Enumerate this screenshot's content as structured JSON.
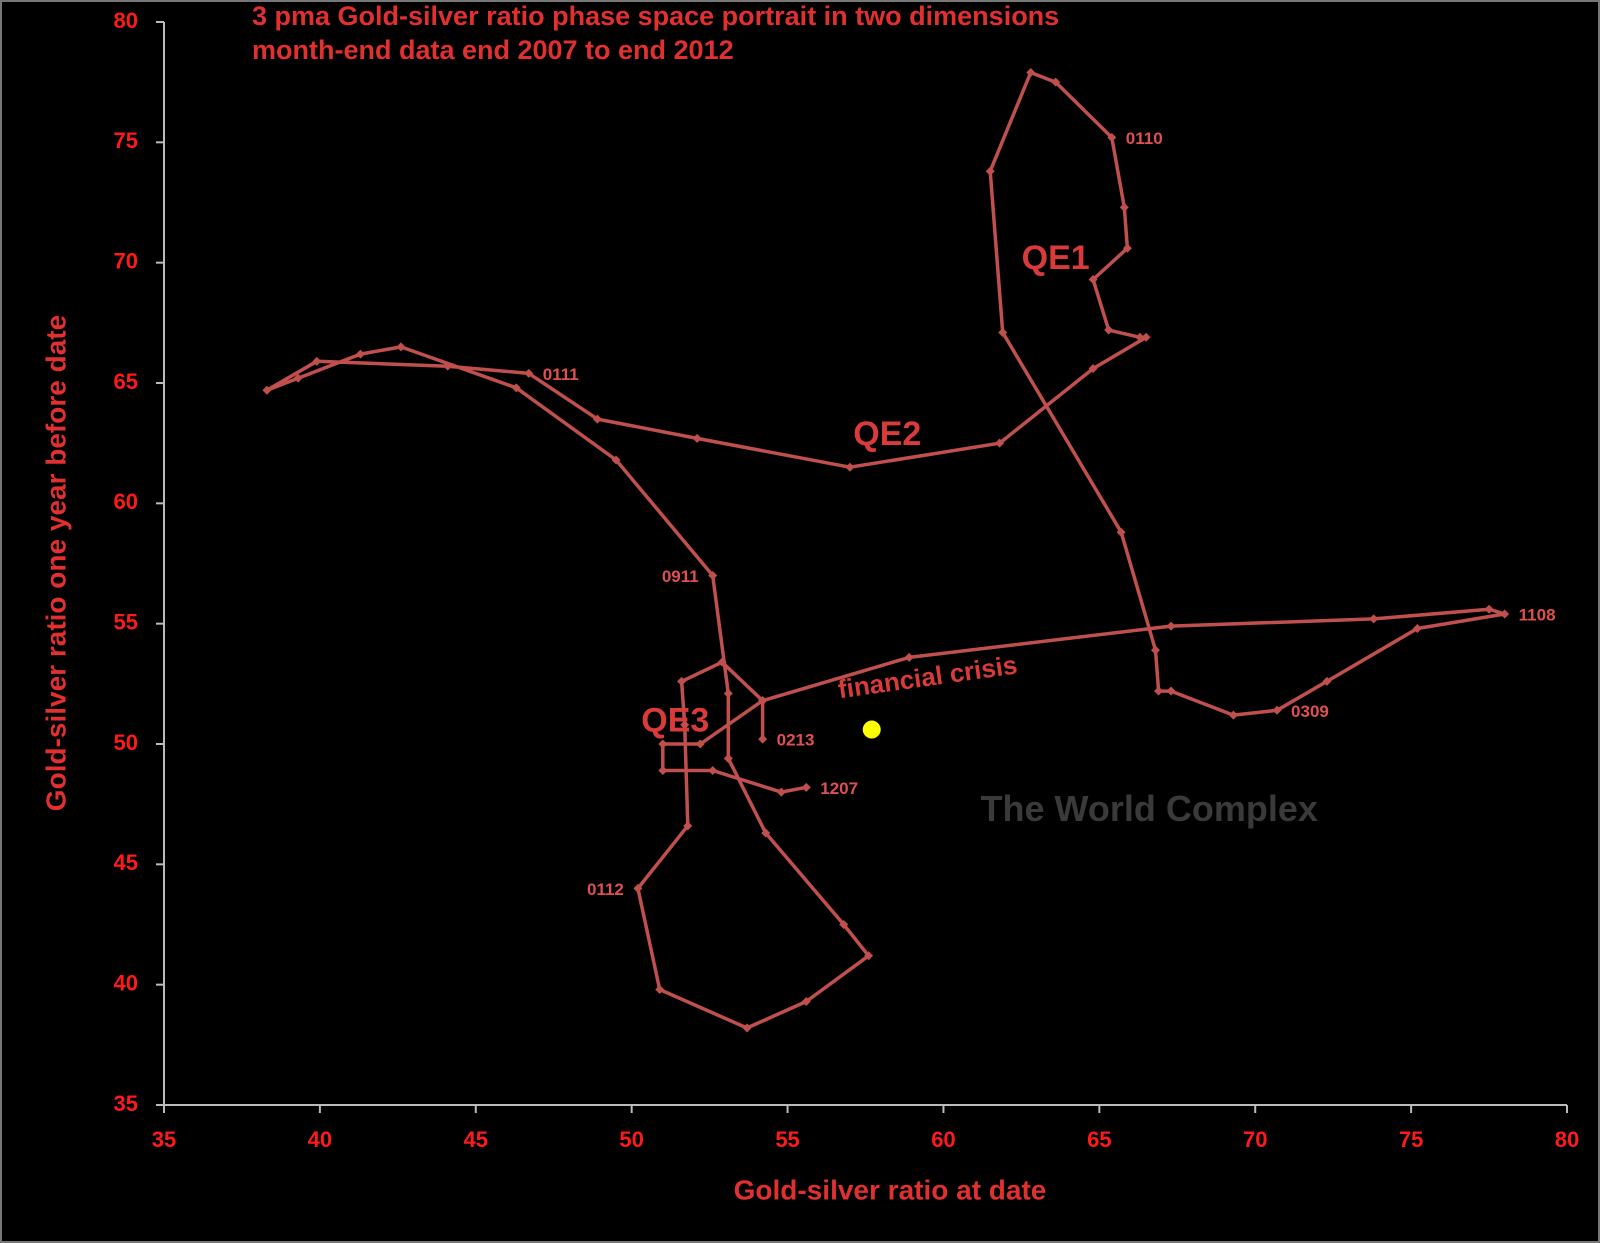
{
  "chart_data": {
    "type": "scatter",
    "title": "3 pma Gold-silver ratio phase space portrait in two dimensions",
    "subtitle": "month-end data end 2007 to end 2012",
    "x_label": "Gold-silver ratio at date",
    "y_label": "Gold-silver ratio one year before date",
    "xlim": [
      35,
      80
    ],
    "ylim": [
      35,
      80
    ],
    "xticks": [
      35,
      40,
      45,
      50,
      55,
      60,
      65,
      70,
      75,
      80
    ],
    "yticks": [
      35,
      40,
      45,
      50,
      55,
      60,
      65,
      70,
      75,
      80
    ],
    "series": [
      {
        "color": "#c0504d",
        "x": [
          55.6,
          54.8,
          52.6,
          51.0,
          51.0,
          52.2,
          54.2,
          58.9,
          67.3,
          73.8,
          77.5,
          78.0,
          75.2,
          72.3,
          70.7,
          69.3,
          67.3,
          66.9,
          66.8,
          65.7,
          61.9,
          61.5,
          62.8,
          63.6,
          65.4,
          65.8,
          65.9,
          64.8,
          65.3,
          66.3,
          66.5,
          64.8,
          61.8,
          57.0,
          52.1,
          48.9,
          46.7,
          44.1,
          39.9,
          38.3,
          39.3,
          41.3,
          42.6,
          46.3,
          49.5,
          52.6,
          53.1,
          53.1,
          54.3,
          56.8,
          57.6,
          55.6,
          53.7,
          50.9,
          50.2,
          51.8,
          51.7,
          51.6,
          52.9,
          54.2,
          54.2
        ],
        "y": [
          48.2,
          48.0,
          48.9,
          48.9,
          50.0,
          50.0,
          51.8,
          53.6,
          54.9,
          55.2,
          55.6,
          55.4,
          54.8,
          52.6,
          51.4,
          51.2,
          52.2,
          52.2,
          53.9,
          58.8,
          67.1,
          73.8,
          77.9,
          77.5,
          75.2,
          72.3,
          70.6,
          69.3,
          67.2,
          66.9,
          66.9,
          65.6,
          62.5,
          61.5,
          62.7,
          63.5,
          65.4,
          65.7,
          65.9,
          64.7,
          65.2,
          66.2,
          66.5,
          64.8,
          61.8,
          57.0,
          52.1,
          49.4,
          46.3,
          42.5,
          41.2,
          39.3,
          38.2,
          39.8,
          44.0,
          46.6,
          50.8,
          52.6,
          53.4,
          51.8,
          50.2
        ],
        "point_labels": [
          "1207",
          null,
          null,
          null,
          null,
          null,
          null,
          null,
          null,
          null,
          null,
          "1108",
          null,
          null,
          "0309",
          null,
          null,
          null,
          null,
          null,
          null,
          null,
          null,
          null,
          "0110",
          null,
          null,
          null,
          null,
          null,
          null,
          null,
          null,
          null,
          null,
          null,
          "0111",
          null,
          null,
          null,
          null,
          null,
          null,
          null,
          null,
          "0911",
          null,
          null,
          null,
          null,
          null,
          null,
          null,
          null,
          "0112",
          null,
          null,
          null,
          null,
          null,
          "0213"
        ]
      }
    ],
    "highlight_point": {
      "x": 57.7,
      "y": 50.6,
      "color": "#ffff00"
    },
    "annotations": [
      {
        "text": "QE1",
        "x": 63.6,
        "y": 70.1
      },
      {
        "text": "QE2",
        "x": 58.2,
        "y": 62.8
      },
      {
        "text": "QE3",
        "x": 51.4,
        "y": 50.9
      },
      {
        "text": "financial crisis",
        "x": 59.5,
        "y": 52.7
      }
    ],
    "watermark": {
      "text": "The World Complex",
      "x": 66.6,
      "y": 47.2
    }
  }
}
